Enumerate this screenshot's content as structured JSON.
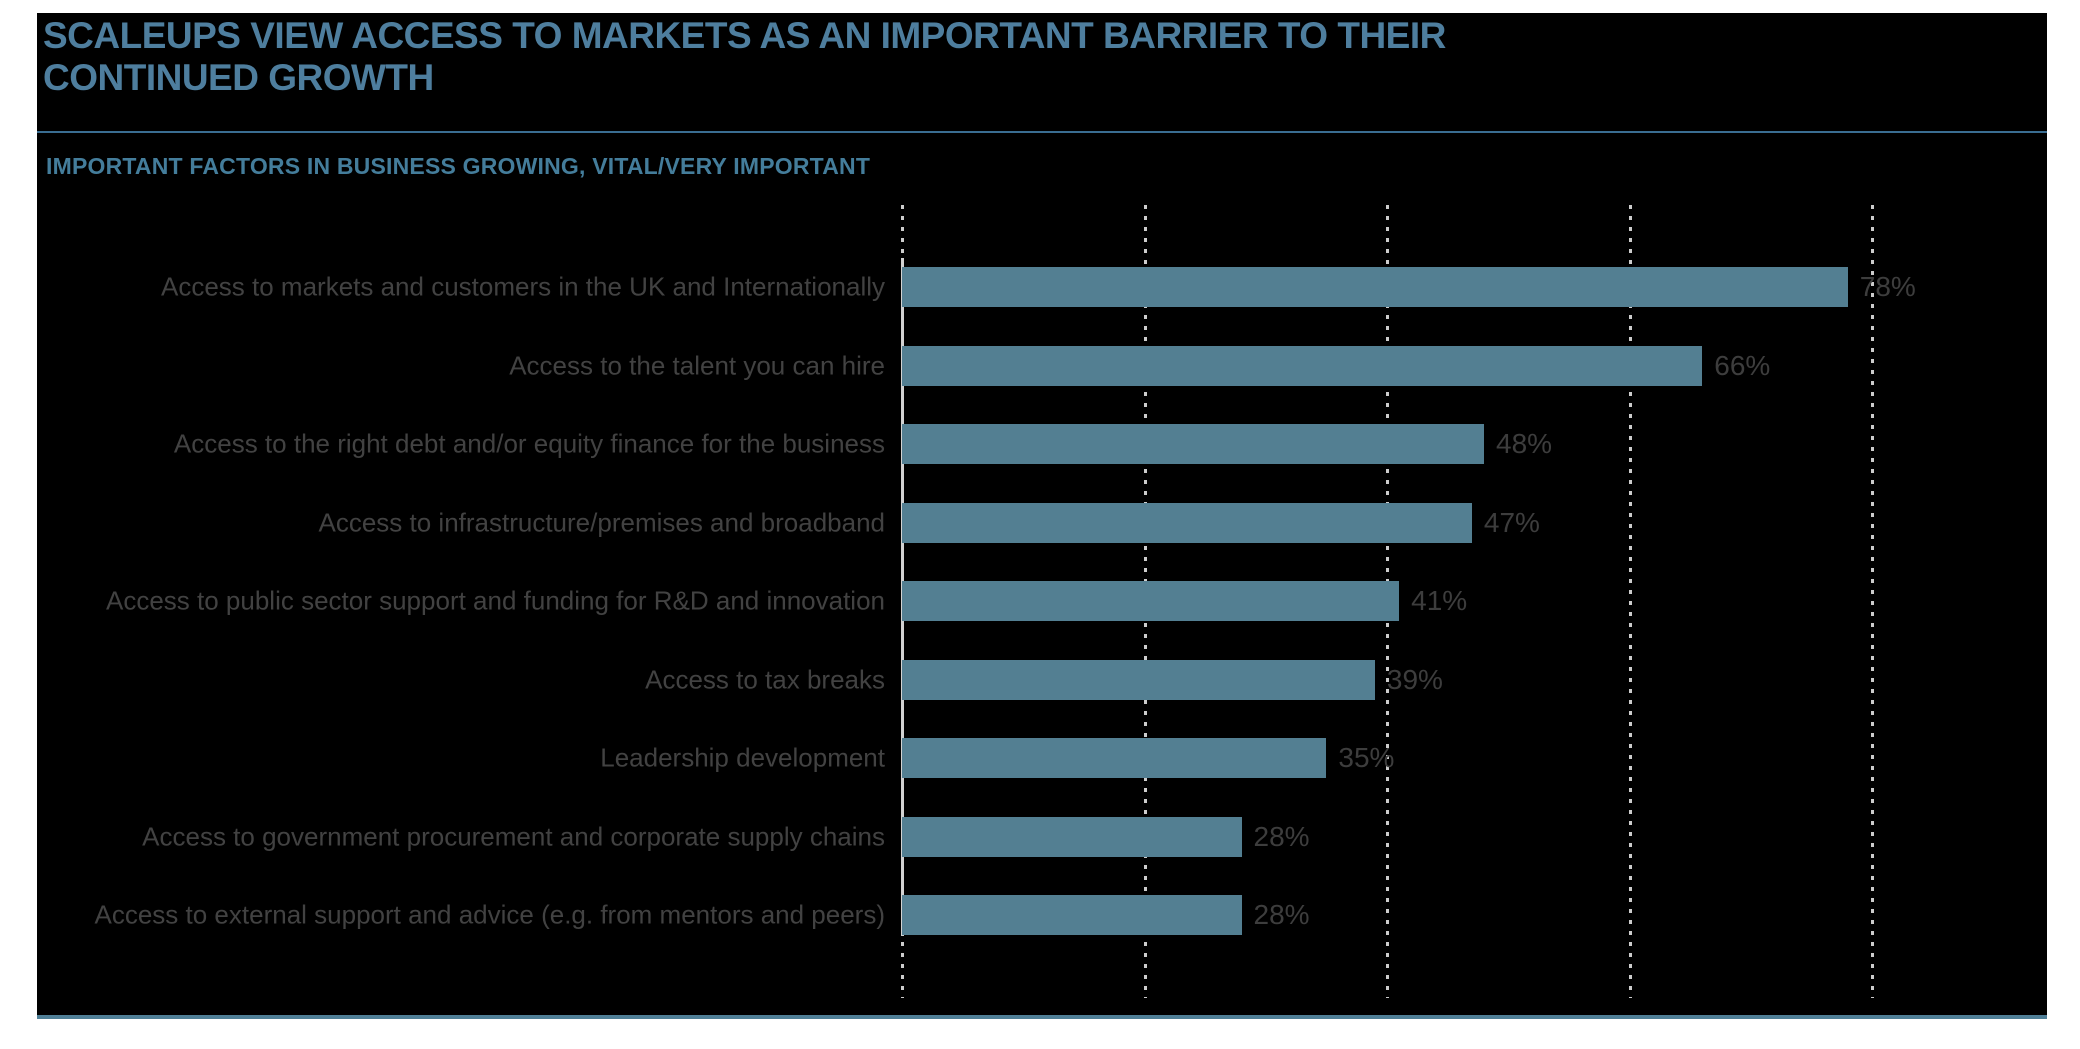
{
  "page": {
    "background_color": "#ffffff"
  },
  "panel": {
    "background_color": "#000000",
    "bottom_border_color": "#4f7f97"
  },
  "header": {
    "title_line1": "SCALEUPS VIEW ACCESS TO MARKETS AS AN IMPORTANT BARRIER TO THEIR",
    "title_line2": "CONTINUED GROWTH",
    "title_color": "#4e7e9e",
    "divider_color": "#3a6d91"
  },
  "chart_data": {
    "type": "bar",
    "orientation": "horizontal",
    "title": "IMPORTANT FACTORS IN BUSINESS GROWING, VITAL/VERY IMPORTANT",
    "categories": [
      "Access to markets and customers in the UK and Internationally",
      "Access to the talent you can hire",
      "Access to the right debt and/or equity finance for the business",
      "Access to infrastructure/premises and broadband",
      "Access to public sector support and funding for R&D and innovation",
      "Access to tax breaks",
      "Leadership development",
      "Access to government procurement and corporate supply chains",
      "Access to external support and advice (e.g. from mentors and peers)"
    ],
    "values": [
      78,
      66,
      48,
      47,
      41,
      39,
      35,
      28,
      28
    ],
    "unit": "%",
    "xlim": [
      0,
      80
    ],
    "gridlines_percent": [
      0,
      20,
      40,
      60,
      80
    ],
    "grid_style": "dotted-vertical",
    "value_labels_shown": true,
    "axis_tick_labels_shown": false,
    "legend": "none",
    "bar_color": "#537f92",
    "value_label_color": "#3d3d3d",
    "category_label_color": "#424242",
    "axis_line_color": "#d2d2d2",
    "gridline_color": "#dedede"
  }
}
